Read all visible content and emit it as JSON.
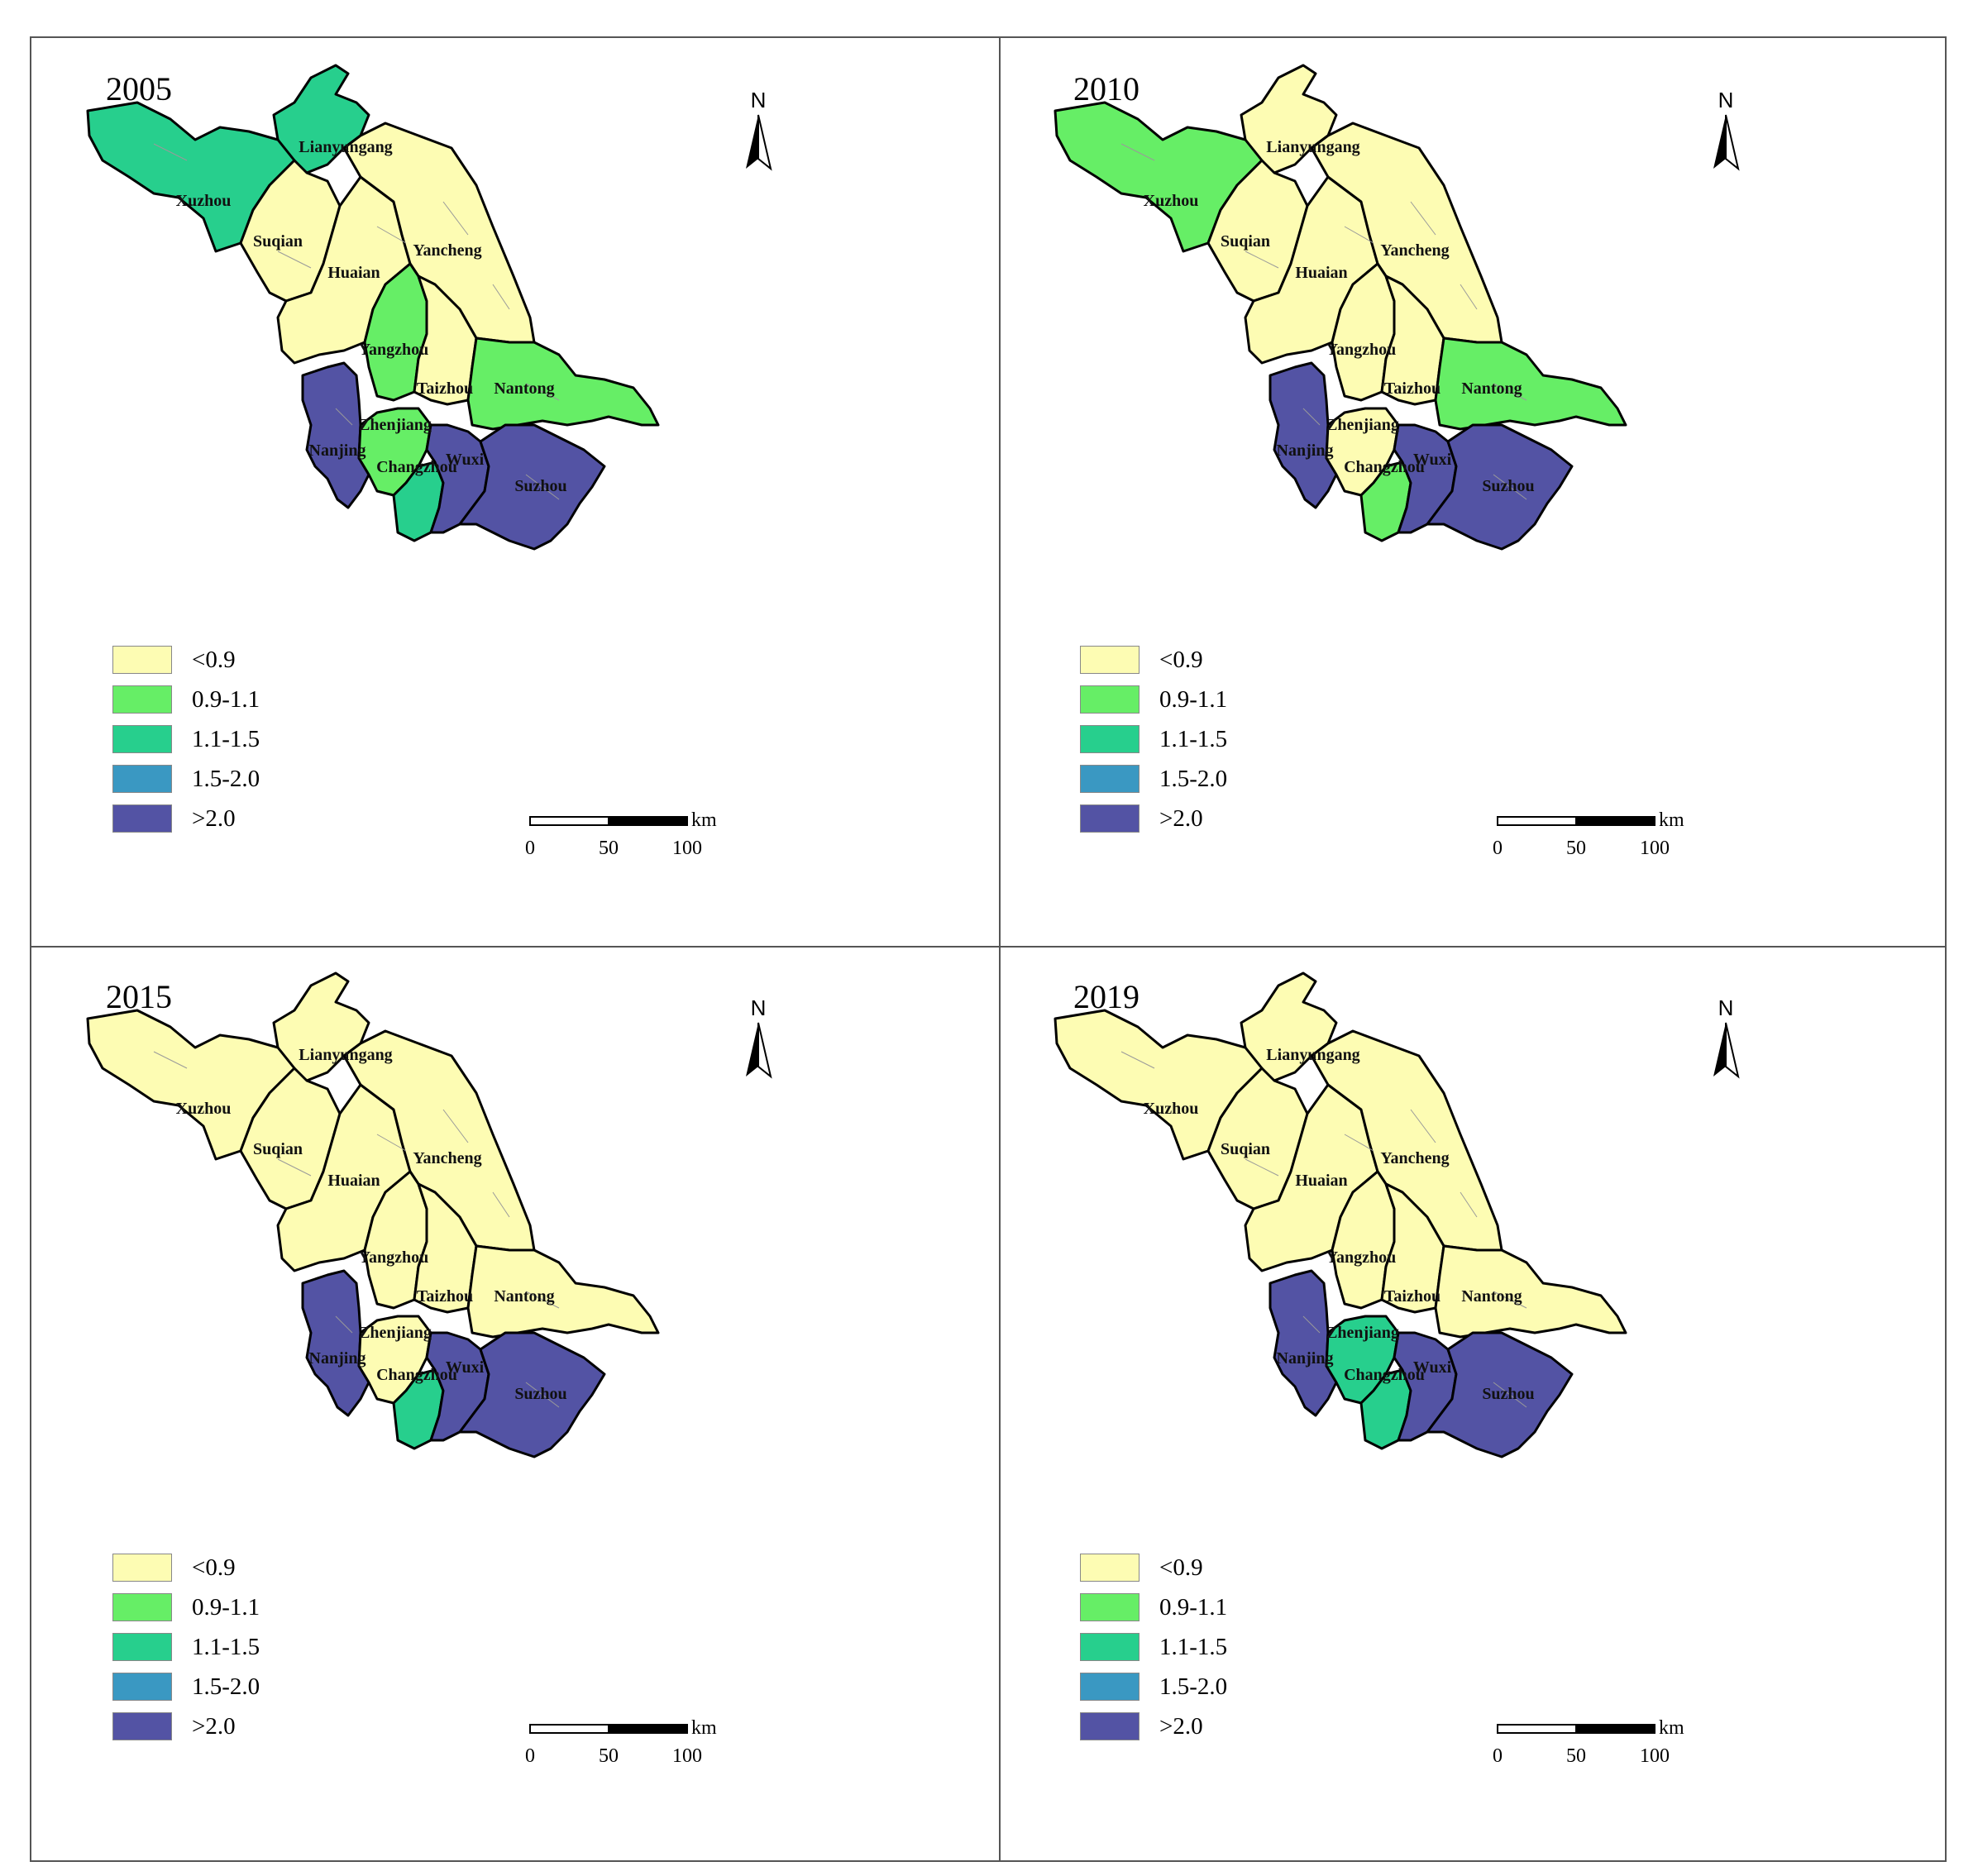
{
  "legend": [
    {
      "label": "<0.9",
      "color": "#fdfcb3"
    },
    {
      "label": "0.9-1.1",
      "color": "#66ee66"
    },
    {
      "label": "1.1-1.5",
      "color": "#27cf8d"
    },
    {
      "label": "1.5-2.0",
      "color": "#3a98c2"
    },
    {
      "label": ">2.0",
      "color": "#5353a4"
    }
  ],
  "north_label": "N",
  "scale": {
    "ticks": [
      "0",
      "50",
      "100"
    ],
    "unit": "km"
  },
  "panels": [
    {
      "year": "2005",
      "cities": [
        {
          "name": "Lianyungang",
          "class": 2
        },
        {
          "name": "Xuzhou",
          "class": 2
        },
        {
          "name": "Suqian",
          "class": 0
        },
        {
          "name": "Huaian",
          "class": 0
        },
        {
          "name": "Yancheng",
          "class": 0
        },
        {
          "name": "Yangzhou",
          "class": 1
        },
        {
          "name": "Taizhou",
          "class": 0
        },
        {
          "name": "Nantong",
          "class": 1
        },
        {
          "name": "Nanjing",
          "class": 4
        },
        {
          "name": "Zhenjiang",
          "class": 1
        },
        {
          "name": "Changzhou",
          "class": 2
        },
        {
          "name": "Wuxi",
          "class": 4
        },
        {
          "name": "Suzhou",
          "class": 4
        }
      ]
    },
    {
      "year": "2010",
      "cities": [
        {
          "name": "Lianyungang",
          "class": 0
        },
        {
          "name": "Xuzhou",
          "class": 1
        },
        {
          "name": "Suqian",
          "class": 0
        },
        {
          "name": "Huaian",
          "class": 0
        },
        {
          "name": "Yancheng",
          "class": 0
        },
        {
          "name": "Yangzhou",
          "class": 0
        },
        {
          "name": "Taizhou",
          "class": 0
        },
        {
          "name": "Nantong",
          "class": 1
        },
        {
          "name": "Nanjing",
          "class": 4
        },
        {
          "name": "Zhenjiang",
          "class": 0
        },
        {
          "name": "Changzhou",
          "class": 1
        },
        {
          "name": "Wuxi",
          "class": 4
        },
        {
          "name": "Suzhou",
          "class": 4
        }
      ]
    },
    {
      "year": "2015",
      "cities": [
        {
          "name": "Lianyungang",
          "class": 0
        },
        {
          "name": "Xuzhou",
          "class": 0
        },
        {
          "name": "Suqian",
          "class": 0
        },
        {
          "name": "Huaian",
          "class": 0
        },
        {
          "name": "Yancheng",
          "class": 0
        },
        {
          "name": "Yangzhou",
          "class": 0
        },
        {
          "name": "Taizhou",
          "class": 0
        },
        {
          "name": "Nantong",
          "class": 0
        },
        {
          "name": "Nanjing",
          "class": 4
        },
        {
          "name": "Zhenjiang",
          "class": 0
        },
        {
          "name": "Changzhou",
          "class": 2
        },
        {
          "name": "Wuxi",
          "class": 4
        },
        {
          "name": "Suzhou",
          "class": 4
        }
      ]
    },
    {
      "year": "2019",
      "cities": [
        {
          "name": "Lianyungang",
          "class": 0
        },
        {
          "name": "Xuzhou",
          "class": 0
        },
        {
          "name": "Suqian",
          "class": 0
        },
        {
          "name": "Huaian",
          "class": 0
        },
        {
          "name": "Yancheng",
          "class": 0
        },
        {
          "name": "Yangzhou",
          "class": 0
        },
        {
          "name": "Taizhou",
          "class": 0
        },
        {
          "name": "Nantong",
          "class": 0
        },
        {
          "name": "Nanjing",
          "class": 4
        },
        {
          "name": "Zhenjiang",
          "class": 2
        },
        {
          "name": "Changzhou",
          "class": 2
        },
        {
          "name": "Wuxi",
          "class": 4
        },
        {
          "name": "Suzhou",
          "class": 4
        }
      ]
    }
  ]
}
